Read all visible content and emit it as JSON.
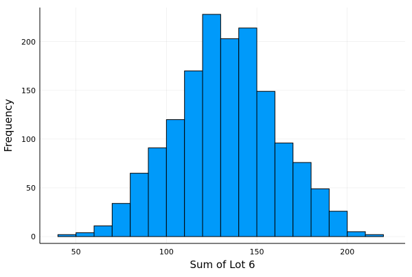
{
  "chart_data": {
    "type": "bar",
    "title": "",
    "xlabel": "Sum of Lot 6",
    "ylabel": "Frequency",
    "bin_edges": [
      40,
      50,
      60,
      70,
      80,
      90,
      100,
      110,
      120,
      130,
      140,
      150,
      160,
      170,
      180,
      190,
      200,
      210,
      220
    ],
    "values": [
      2,
      4,
      11,
      34,
      65,
      91,
      120,
      170,
      228,
      203,
      214,
      149,
      96,
      76,
      49,
      26,
      5,
      2
    ],
    "xlim": [
      30,
      232
    ],
    "ylim": [
      -7,
      235
    ],
    "xticks": [
      50,
      100,
      150,
      200
    ],
    "yticks": [
      0,
      50,
      100,
      150,
      200
    ],
    "grid": true,
    "legend": "none",
    "bar_color": "#009AFA"
  }
}
